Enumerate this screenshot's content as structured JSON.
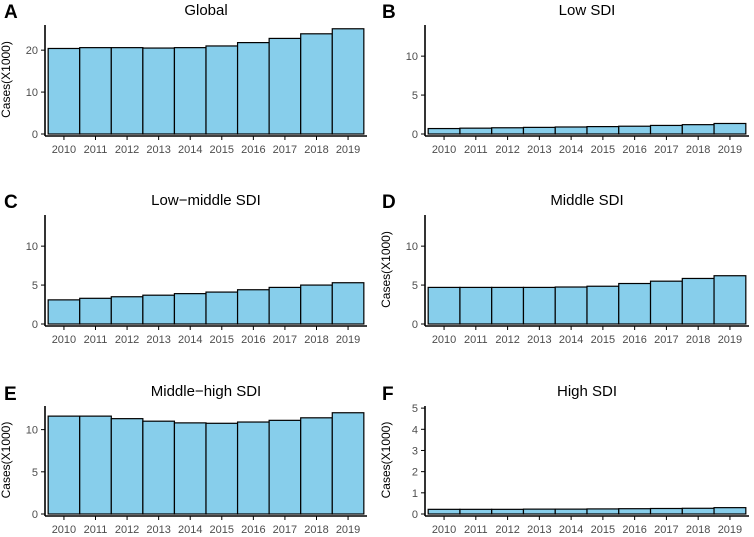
{
  "colors": {
    "bar_fill": "#87CEEB",
    "bar_stroke": "#000000",
    "axis": "#000000",
    "tick_text": "#4d4d4d",
    "title_text": "#000000"
  },
  "chart_data": [
    {
      "panel": "A",
      "type": "bar",
      "title": "Global",
      "ylabel": "Cases(X1000)",
      "xlabel": "",
      "categories": [
        "2010",
        "2011",
        "2012",
        "2013",
        "2014",
        "2015",
        "2016",
        "2017",
        "2018",
        "2019"
      ],
      "values": [
        20.4,
        20.6,
        20.6,
        20.5,
        20.6,
        21.0,
        21.8,
        22.8,
        23.9,
        25.1
      ],
      "ylim": [
        0,
        26
      ],
      "yticks": [
        0,
        10,
        20
      ],
      "ytick_labels": [
        "0",
        "10",
        "20"
      ]
    },
    {
      "panel": "B",
      "type": "bar",
      "title": "Low SDI",
      "ylabel": "",
      "xlabel": "",
      "categories": [
        "2010",
        "2011",
        "2012",
        "2013",
        "2014",
        "2015",
        "2016",
        "2017",
        "2018",
        "2019"
      ],
      "values": [
        0.7,
        0.75,
        0.8,
        0.85,
        0.9,
        0.95,
        1.0,
        1.1,
        1.2,
        1.35
      ],
      "ylim": [
        0,
        14
      ],
      "yticks": [
        0,
        5,
        10
      ],
      "ytick_labels": [
        "0",
        "5",
        "10"
      ]
    },
    {
      "panel": "C",
      "type": "bar",
      "title": "Low−middle SDI",
      "ylabel": "",
      "xlabel": "",
      "categories": [
        "2010",
        "2011",
        "2012",
        "2013",
        "2014",
        "2015",
        "2016",
        "2017",
        "2018",
        "2019"
      ],
      "values": [
        3.1,
        3.3,
        3.5,
        3.7,
        3.9,
        4.1,
        4.4,
        4.7,
        5.0,
        5.3
      ],
      "ylim": [
        0,
        14
      ],
      "yticks": [
        0,
        5,
        10
      ],
      "ytick_labels": [
        "0",
        "5",
        "10"
      ]
    },
    {
      "panel": "D",
      "type": "bar",
      "title": "Middle SDI",
      "ylabel": "Cases(X1000)",
      "xlabel": "",
      "categories": [
        "2010",
        "2011",
        "2012",
        "2013",
        "2014",
        "2015",
        "2016",
        "2017",
        "2018",
        "2019"
      ],
      "values": [
        4.7,
        4.7,
        4.7,
        4.7,
        4.75,
        4.85,
        5.2,
        5.5,
        5.85,
        6.2
      ],
      "ylim": [
        0,
        14
      ],
      "yticks": [
        0,
        5,
        10
      ],
      "ytick_labels": [
        "0",
        "5",
        "10"
      ]
    },
    {
      "panel": "E",
      "type": "bar",
      "title": "Middle−high SDI",
      "ylabel": "Cases(X1000)",
      "xlabel": "",
      "categories": [
        "2010",
        "2011",
        "2012",
        "2013",
        "2014",
        "2015",
        "2016",
        "2017",
        "2018",
        "2019"
      ],
      "values": [
        11.6,
        11.6,
        11.3,
        11.0,
        10.8,
        10.75,
        10.9,
        11.1,
        11.4,
        12.0
      ],
      "ylim": [
        0,
        12.8
      ],
      "yticks": [
        0,
        5,
        10
      ],
      "ytick_labels": [
        "0",
        "5",
        "10"
      ]
    },
    {
      "panel": "F",
      "type": "bar",
      "title": "High SDI",
      "ylabel": "Cases(X1000)",
      "xlabel": "",
      "categories": [
        "2010",
        "2011",
        "2012",
        "2013",
        "2014",
        "2015",
        "2016",
        "2017",
        "2018",
        "2019"
      ],
      "values": [
        0.22,
        0.22,
        0.22,
        0.23,
        0.23,
        0.24,
        0.25,
        0.26,
        0.27,
        0.3
      ],
      "ylim": [
        0,
        5.1
      ],
      "yticks": [
        0,
        1,
        2,
        3,
        4,
        5
      ],
      "ytick_labels": [
        "0",
        "1",
        "2",
        "3",
        "4",
        "5"
      ]
    }
  ]
}
